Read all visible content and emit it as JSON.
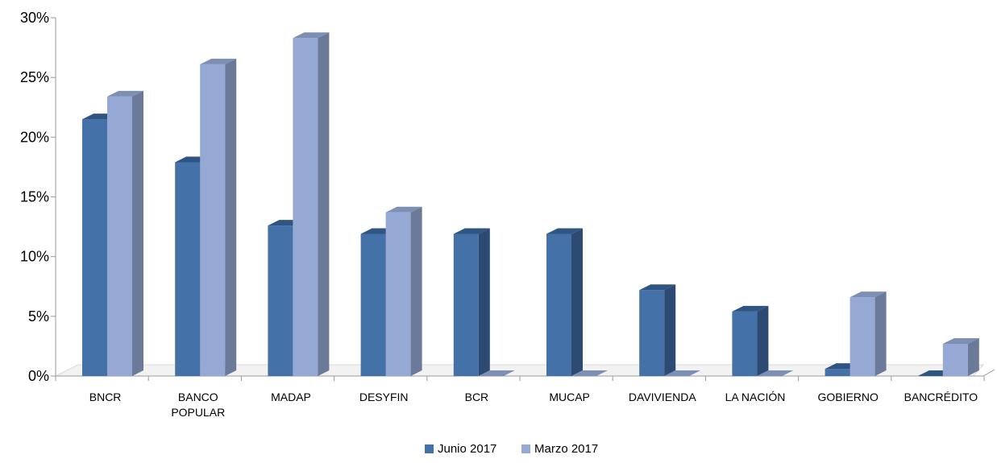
{
  "chart_data": {
    "type": "bar",
    "title": "",
    "xlabel": "",
    "ylabel": "",
    "ylim": [
      0,
      30
    ],
    "yticks": [
      "0%",
      "5%",
      "10%",
      "15%",
      "20%",
      "25%",
      "30%"
    ],
    "categories": [
      [
        "BNCR"
      ],
      [
        "BANCO",
        "POPULAR"
      ],
      [
        "MADAP"
      ],
      [
        "DESYFIN"
      ],
      [
        "BCR"
      ],
      [
        "MUCAP"
      ],
      [
        "DAVIVIENDA"
      ],
      [
        "LA NACIÓN"
      ],
      [
        "GOBIERNO"
      ],
      [
        "BANCRÉDITO"
      ]
    ],
    "series": [
      {
        "name": "Junio 2017",
        "values": [
          21.5,
          17.9,
          12.6,
          11.9,
          11.9,
          11.9,
          7.2,
          5.4,
          0.6,
          0
        ]
      },
      {
        "name": "Marzo 2017",
        "values": [
          23.4,
          26.1,
          28.3,
          13.7,
          0,
          0,
          0,
          0,
          6.6,
          2.7
        ]
      }
    ],
    "grid": false,
    "legend_position": "bottom",
    "colors": {
      "series": [
        "#4472a8",
        "#95a9d4"
      ],
      "series_top": [
        "#2f5583",
        "#7d90b3"
      ],
      "series_side": [
        "#2c4a72",
        "#6b7a98"
      ],
      "floor": "#d9d9d9",
      "axis": "#999999"
    }
  }
}
